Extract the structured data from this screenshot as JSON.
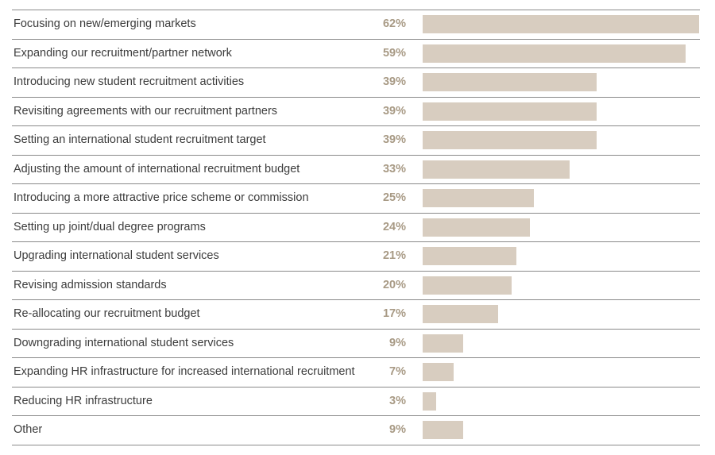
{
  "chart_data": {
    "type": "bar",
    "orientation": "horizontal",
    "categories": [
      "Focusing on new/emerging markets",
      "Expanding our recruitment/partner network",
      "Introducing new student recruitment activities",
      "Revisiting agreements with our recruitment partners",
      "Setting an international student recruitment target",
      "Adjusting the amount of international recruitment budget",
      "Introducing a more attractive price scheme or commission",
      "Setting up joint/dual degree programs",
      "Upgrading international student services",
      "Revising admission standards",
      "Re-allocating our recruitment budget",
      "Downgrading international student services",
      "Expanding HR infrastructure for increased international recruitment",
      "Reducing HR infrastructure",
      "Other"
    ],
    "values": [
      62,
      59,
      39,
      39,
      39,
      33,
      25,
      24,
      21,
      20,
      17,
      9,
      7,
      3,
      9
    ],
    "value_labels": [
      "62%",
      "59%",
      "39%",
      "39%",
      "39%",
      "33%",
      "25%",
      "24%",
      "21%",
      "20%",
      "17%",
      "9%",
      "7%",
      "3%",
      "9%"
    ],
    "unit": "%",
    "xlim": [
      0,
      62
    ],
    "grid": false,
    "legend": "none"
  },
  "colors": {
    "bar": "#d8cdc0",
    "value_text": "#a89a85",
    "label_text": "#3c3c3c",
    "divider": "#8a8a8a"
  }
}
